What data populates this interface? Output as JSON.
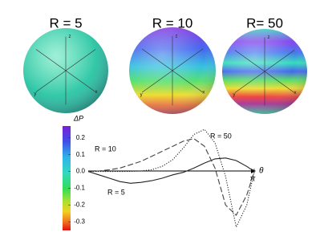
{
  "spheres": [
    {
      "label": "R = 5",
      "axis_labels": [
        "z",
        "y",
        "x"
      ]
    },
    {
      "label": "R = 10",
      "axis_labels": [
        "z",
        "y",
        "x"
      ]
    },
    {
      "label": "R= 50",
      "axis_labels": [
        "z",
        "y",
        "x"
      ]
    }
  ],
  "chart_data": {
    "type": "line",
    "y_label": "ΔP",
    "x_label": "θ",
    "x": [
      0,
      0.2,
      0.4,
      0.6,
      0.8,
      1.0,
      1.2,
      1.4,
      1.6,
      1.8,
      2.0,
      2.2,
      2.4,
      2.6,
      2.8,
      3.0,
      3.14159
    ],
    "xlim": [
      0,
      3.14159
    ],
    "xticks": [
      {
        "value": 3.14159,
        "label": "π"
      }
    ],
    "ylim": [
      -0.35,
      0.27
    ],
    "yticks": [
      0.2,
      0.1,
      {
        "value": 0,
        "label": "0.0"
      },
      -0.1,
      -0.2,
      -0.3
    ],
    "series": [
      {
        "name": "R = 5",
        "color": "#222222",
        "dash": "solid",
        "values": [
          0,
          -0.02,
          -0.04,
          -0.06,
          -0.07,
          -0.065,
          -0.055,
          -0.04,
          -0.02,
          -0.005,
          0.02,
          0.05,
          0.075,
          0.08,
          0.065,
          0.03,
          0
        ]
      },
      {
        "name": "R = 10",
        "color": "#444444",
        "dash": "dashed",
        "values": [
          0,
          0.003,
          0.01,
          0.02,
          0.04,
          0.06,
          0.09,
          0.12,
          0.15,
          0.18,
          0.195,
          0.15,
          0.02,
          -0.2,
          -0.26,
          -0.14,
          0
        ]
      },
      {
        "name": "R = 50",
        "color": "#222222",
        "dash": "dotted",
        "values": [
          0,
          0,
          0,
          0,
          0.001,
          0.003,
          0.01,
          0.03,
          0.07,
          0.14,
          0.22,
          0.25,
          0.17,
          -0.03,
          -0.33,
          -0.2,
          0
        ]
      }
    ]
  }
}
